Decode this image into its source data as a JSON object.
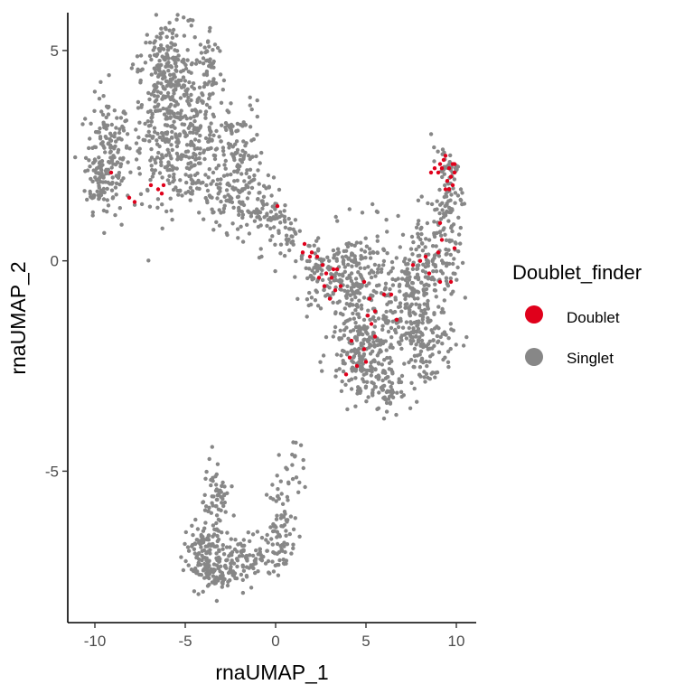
{
  "chart_data": {
    "type": "scatter",
    "xlabel": "rnaUMAP_1",
    "ylabel": "rnaUMAP_2",
    "xlim": [
      -11.5,
      11.1
    ],
    "ylim": [
      -8.6,
      5.9
    ],
    "x_ticks": [
      -10,
      -5,
      0,
      5,
      10
    ],
    "x_tick_labels": [
      "-10",
      "-5",
      "0",
      "5",
      "10"
    ],
    "y_ticks": [
      -5,
      0,
      5
    ],
    "y_tick_labels": [
      "-5",
      "0",
      "5"
    ],
    "grid": false,
    "legend": {
      "title": "Doublet_finder",
      "position": "right",
      "entries": [
        {
          "label": "Doublet",
          "color": "#e0001b"
        },
        {
          "label": "Singlet",
          "color": "#878787"
        }
      ]
    },
    "series": [
      {
        "name": "Singlet",
        "color": "#878787",
        "clusters": [
          {
            "cx": -9.3,
            "cy": 2.5,
            "sx": 0.6,
            "sy": 0.7,
            "n": 140
          },
          {
            "cx": -9.7,
            "cy": 2.0,
            "sx": 0.4,
            "sy": 0.4,
            "n": 50
          },
          {
            "cx": -5.8,
            "cy": 3.4,
            "sx": 1.2,
            "sy": 1.0,
            "n": 330
          },
          {
            "cx": -6.0,
            "cy": 4.5,
            "sx": 0.7,
            "sy": 0.6,
            "n": 110
          },
          {
            "cx": -3.6,
            "cy": 4.6,
            "sx": 0.35,
            "sy": 0.5,
            "n": 45
          },
          {
            "cx": -4.6,
            "cy": 2.5,
            "sx": 1.0,
            "sy": 0.7,
            "n": 150
          },
          {
            "cx": -2.0,
            "cy": 2.6,
            "sx": 0.7,
            "sy": 0.6,
            "n": 80
          },
          {
            "cx": -2.2,
            "cy": 1.5,
            "sx": 0.8,
            "sy": 0.4,
            "n": 90
          },
          {
            "cx": -0.5,
            "cy": 1.2,
            "sx": 0.6,
            "sy": 0.35,
            "n": 50
          },
          {
            "cx": 0.8,
            "cy": 0.6,
            "sx": 0.6,
            "sy": 0.3,
            "n": 45
          },
          {
            "cx": 2.5,
            "cy": -0.3,
            "sx": 0.6,
            "sy": 0.35,
            "n": 70
          },
          {
            "cx": 4.5,
            "cy": -0.4,
            "sx": 1.0,
            "sy": 0.6,
            "n": 180
          },
          {
            "cx": 4.6,
            "cy": -1.7,
            "sx": 0.8,
            "sy": 0.6,
            "n": 150
          },
          {
            "cx": 5.0,
            "cy": -2.6,
            "sx": 0.7,
            "sy": 0.5,
            "n": 100
          },
          {
            "cx": 6.2,
            "cy": -3.1,
            "sx": 0.35,
            "sy": 0.3,
            "n": 40
          },
          {
            "cx": 7.2,
            "cy": -1.2,
            "sx": 0.7,
            "sy": 0.7,
            "n": 110
          },
          {
            "cx": 8.3,
            "cy": -0.3,
            "sx": 0.8,
            "sy": 0.7,
            "n": 140
          },
          {
            "cx": 8.3,
            "cy": -2.0,
            "sx": 0.8,
            "sy": 0.5,
            "n": 100
          },
          {
            "cx": 9.3,
            "cy": 0.6,
            "sx": 0.5,
            "sy": 0.6,
            "n": 80
          },
          {
            "cx": 9.7,
            "cy": 1.6,
            "sx": 0.3,
            "sy": 0.4,
            "n": 40
          },
          {
            "cx": 9.3,
            "cy": 2.3,
            "sx": 0.35,
            "sy": 0.2,
            "n": 25
          },
          {
            "cx": -3.3,
            "cy": -5.8,
            "sx": 0.35,
            "sy": 0.6,
            "n": 70
          },
          {
            "cx": -4.1,
            "cy": -7.0,
            "sx": 0.5,
            "sy": 0.4,
            "n": 110
          },
          {
            "cx": -3.0,
            "cy": -7.3,
            "sx": 0.5,
            "sy": 0.35,
            "n": 80
          },
          {
            "cx": -1.4,
            "cy": -7.0,
            "sx": 0.6,
            "sy": 0.25,
            "n": 70
          },
          {
            "cx": 0.3,
            "cy": -6.4,
            "sx": 0.4,
            "sy": 0.6,
            "n": 80
          },
          {
            "cx": 0.9,
            "cy": -4.9,
            "sx": 0.3,
            "sy": 0.4,
            "n": 20
          }
        ]
      },
      {
        "name": "Doublet",
        "color": "#e0001b",
        "points": [
          [
            9.1,
            2.3
          ],
          [
            9.3,
            2.4
          ],
          [
            8.8,
            2.2
          ],
          [
            9.6,
            2.2
          ],
          [
            9.8,
            2.3
          ],
          [
            9.9,
            2.1
          ],
          [
            8.6,
            2.1
          ],
          [
            9.4,
            2.5
          ],
          [
            9.0,
            2.1
          ],
          [
            9.7,
            2.0
          ],
          [
            9.6,
            1.7
          ],
          [
            9.5,
            1.9
          ],
          [
            9.8,
            1.8
          ],
          [
            9.9,
            2.3
          ],
          [
            9.2,
            2.2
          ],
          [
            9.4,
            1.7
          ],
          [
            9.1,
            0.9
          ],
          [
            9.2,
            0.5
          ],
          [
            9.0,
            0.2
          ],
          [
            8.3,
            0.1
          ],
          [
            8.0,
            0.0
          ],
          [
            7.6,
            -0.1
          ],
          [
            8.5,
            -0.3
          ],
          [
            9.9,
            0.3
          ],
          [
            9.7,
            -0.5
          ],
          [
            9.1,
            -0.5
          ],
          [
            1.6,
            0.4
          ],
          [
            2.0,
            0.2
          ],
          [
            2.3,
            0.1
          ],
          [
            2.6,
            -0.1
          ],
          [
            2.8,
            -0.3
          ],
          [
            2.7,
            -0.6
          ],
          [
            3.1,
            -0.4
          ],
          [
            3.4,
            -0.2
          ],
          [
            3.3,
            -0.7
          ],
          [
            3.0,
            -0.9
          ],
          [
            3.6,
            -0.6
          ],
          [
            4.9,
            -0.5
          ],
          [
            5.2,
            -0.9
          ],
          [
            5.1,
            -1.3
          ],
          [
            5.5,
            -1.2
          ],
          [
            6.0,
            -0.8
          ],
          [
            6.4,
            -0.8
          ],
          [
            5.3,
            -1.5
          ],
          [
            5.5,
            -1.8
          ],
          [
            5.0,
            -2.4
          ],
          [
            4.2,
            -1.9
          ],
          [
            4.1,
            -2.3
          ],
          [
            3.9,
            -2.7
          ],
          [
            4.5,
            -2.5
          ],
          [
            4.9,
            -2.1
          ],
          [
            6.7,
            -1.4
          ],
          [
            1.5,
            0.2
          ],
          [
            3.2,
            -0.2
          ],
          [
            -9.1,
            2.1
          ],
          [
            -8.1,
            1.5
          ],
          [
            -7.8,
            1.4
          ],
          [
            -6.2,
            1.8
          ],
          [
            -6.9,
            1.8
          ],
          [
            -6.5,
            1.7
          ],
          [
            -6.3,
            1.6
          ],
          [
            0.1,
            1.3
          ],
          [
            1.9,
            0.1
          ],
          [
            2.4,
            -0.4
          ]
        ]
      }
    ]
  }
}
